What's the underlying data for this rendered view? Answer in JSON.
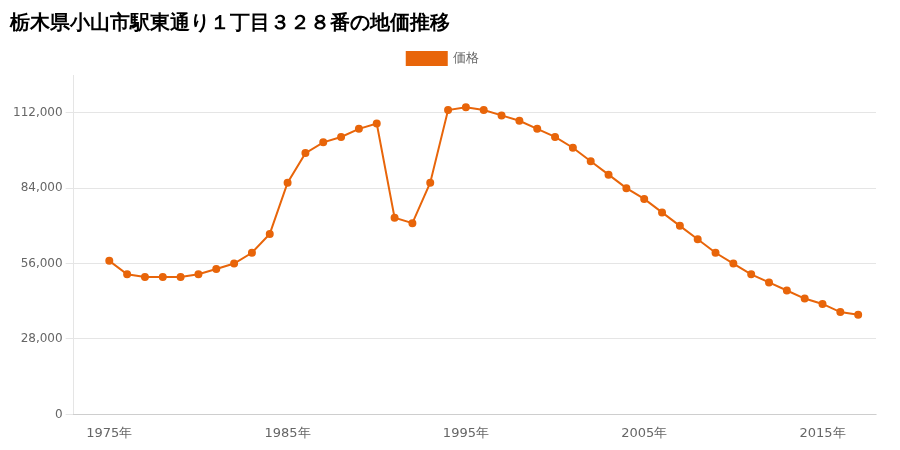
{
  "chart_data": {
    "type": "line",
    "title": "栃木県小山市駅東通り１丁目３２８番の地価推移",
    "x": [
      1975,
      1976,
      1977,
      1978,
      1979,
      1980,
      1981,
      1982,
      1983,
      1984,
      1985,
      1986,
      1987,
      1988,
      1989,
      1990,
      1991,
      1992,
      1993,
      1994,
      1995,
      1996,
      1997,
      1998,
      1999,
      2000,
      2001,
      2002,
      2003,
      2004,
      2005,
      2006,
      2007,
      2008,
      2009,
      2010,
      2011,
      2012,
      2013,
      2014,
      2015,
      2016,
      2017
    ],
    "series": [
      {
        "name": "価格",
        "color": "#e8650a",
        "marker": "circle",
        "values": [
          57000,
          52000,
          51000,
          51000,
          51000,
          52000,
          54000,
          56000,
          60000,
          67000,
          86000,
          97000,
          101000,
          103000,
          106000,
          108000,
          73000,
          71000,
          86000,
          113000,
          114000,
          113000,
          111000,
          109000,
          106000,
          103000,
          99000,
          94000,
          89000,
          84000,
          80000,
          75000,
          70000,
          65000,
          60000,
          56000,
          52000,
          49000,
          46000,
          43000,
          41000,
          38000,
          37000
        ]
      }
    ],
    "xlim": [
      1973,
      2018
    ],
    "xticks": [
      {
        "value": 1975,
        "label": "1975年"
      },
      {
        "value": 1985,
        "label": "1985年"
      },
      {
        "value": 1995,
        "label": "1995年"
      },
      {
        "value": 2005,
        "label": "2005年"
      },
      {
        "value": 2015,
        "label": "2015年"
      }
    ],
    "ylim": [
      0,
      126000
    ],
    "yticks": [
      0,
      {
        "value": 28000,
        "label": "28,000"
      },
      {
        "value": 56000,
        "label": "56,000"
      },
      {
        "value": 84000,
        "label": "84,000"
      },
      {
        "value": 112000,
        "label": "112,000"
      }
    ],
    "grid": "y",
    "legend": "top"
  }
}
